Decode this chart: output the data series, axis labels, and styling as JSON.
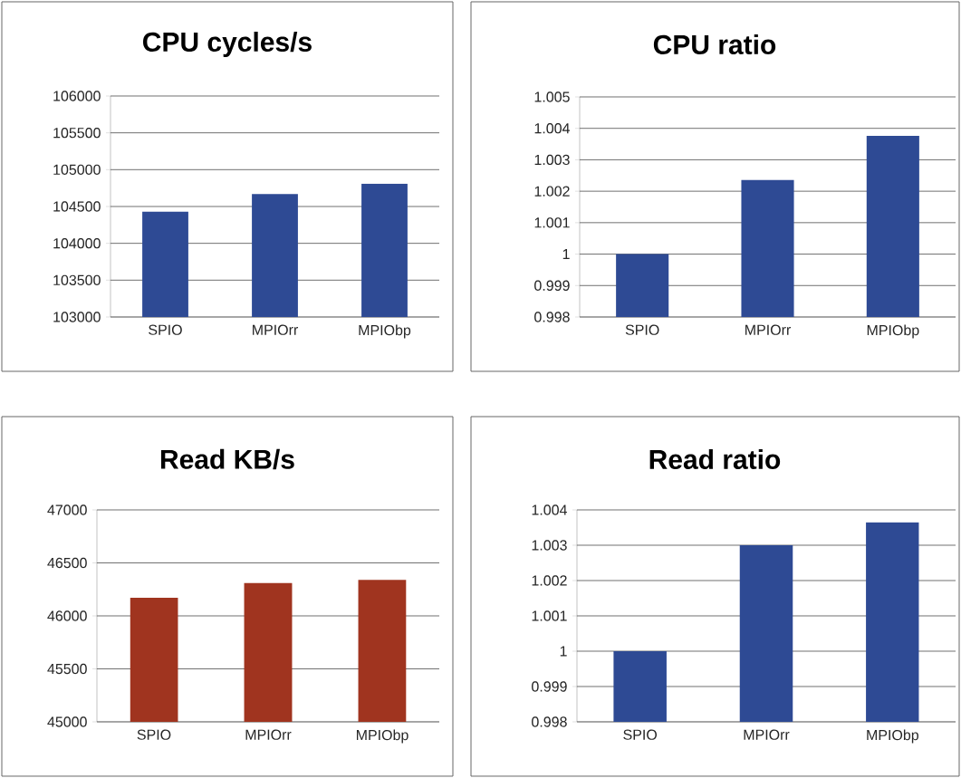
{
  "chart_data": [
    {
      "type": "bar",
      "title": "CPU cycles/s",
      "categories": [
        "SPIO",
        "MPIOrr",
        "MPIObp"
      ],
      "values": [
        104430,
        104670,
        104810
      ],
      "color": "#2e4a94",
      "ylim": [
        103000,
        106000
      ],
      "yticks": [
        103000,
        103500,
        104000,
        104500,
        105000,
        105500,
        106000
      ],
      "grid": "y"
    },
    {
      "type": "bar",
      "title": "CPU ratio",
      "categories": [
        "SPIO",
        "MPIOrr",
        "MPIObp"
      ],
      "values": [
        1.0,
        1.00236,
        1.00376
      ],
      "color": "#2e4a94",
      "ylim": [
        0.998,
        1.005
      ],
      "yticks": [
        0.998,
        0.999,
        1,
        1.001,
        1.002,
        1.003,
        1.004,
        1.005
      ],
      "grid": "y"
    },
    {
      "type": "bar",
      "title": "Read KB/s",
      "categories": [
        "SPIO",
        "MPIOrr",
        "MPIObp"
      ],
      "values": [
        46170,
        46310,
        46340
      ],
      "color": "#a0341f",
      "ylim": [
        45000,
        47000
      ],
      "yticks": [
        45000,
        45500,
        46000,
        46500,
        47000
      ],
      "grid": "y"
    },
    {
      "type": "bar",
      "title": "Read ratio",
      "categories": [
        "SPIO",
        "MPIOrr",
        "MPIObp"
      ],
      "values": [
        1.0,
        1.003,
        1.00365
      ],
      "color": "#2e4a94",
      "ylim": [
        0.998,
        1.004
      ],
      "yticks": [
        0.998,
        0.999,
        1,
        1.001,
        1.002,
        1.003,
        1.004
      ],
      "grid": "y"
    }
  ]
}
